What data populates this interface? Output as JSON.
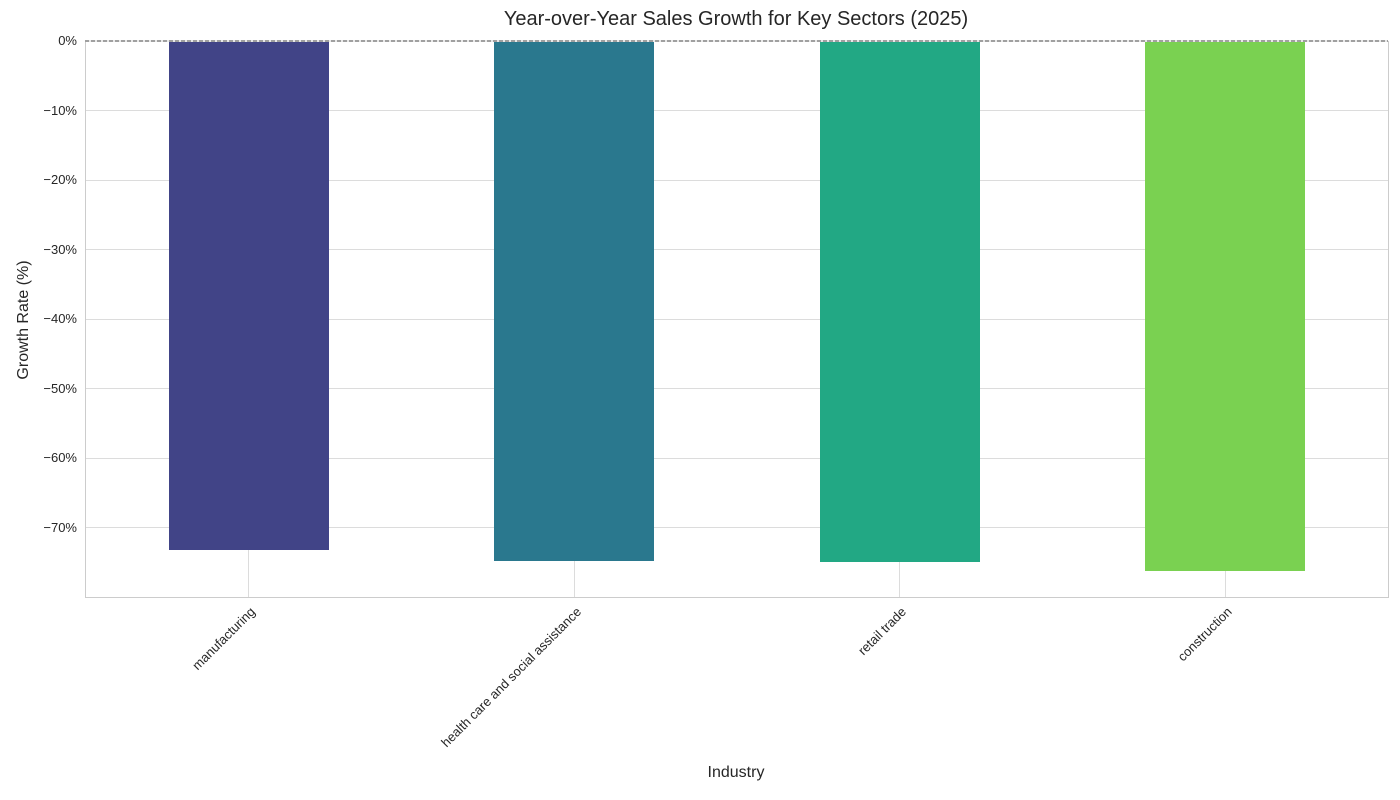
{
  "figure": {
    "title": "Year-over-Year Sales Growth for Key Sectors (2025)"
  },
  "chart_data": {
    "type": "bar",
    "title": "Year-over-Year Sales Growth for Key Sectors (2025)",
    "xlabel": "Industry",
    "ylabel": "Growth Rate (%)",
    "categories": [
      "manufacturing",
      "health care and social assistance",
      "retail trade",
      "construction"
    ],
    "values": [
      -73.2,
      -74.8,
      -74.9,
      -76.2
    ],
    "bar_colors": [
      "#414487",
      "#2a788e",
      "#22a884",
      "#7ad151"
    ],
    "ylim": [
      -80,
      0
    ],
    "yticks": [
      0,
      -10,
      -20,
      -30,
      -40,
      -50,
      -60,
      -70
    ],
    "ytick_labels": [
      "0%",
      "−10%",
      "−20%",
      "−30%",
      "−40%",
      "−50%",
      "−60%",
      "−70%"
    ],
    "grid": true,
    "legend": false,
    "zero_line_style": "dashed",
    "x_tick_rotation_deg": 45
  },
  "style": {
    "grid_color": "#dcdcdc",
    "spine_color": "#cccccc",
    "text_color": "#262626",
    "zero_line_color": "#a0a0a0",
    "background": "#ffffff"
  }
}
